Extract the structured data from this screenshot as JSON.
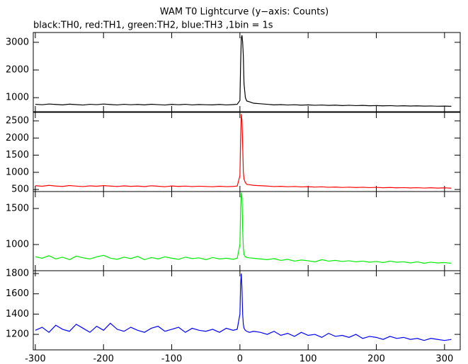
{
  "chart_data": [
    {
      "type": "line",
      "title": "WAM T0 Lightcurve (y−axis: Counts)",
      "subtitle": "black:TH0, red:TH1, green:TH2, blue:TH3 ,1bin = 1s",
      "xlim": [
        -303,
        323
      ],
      "ylim": [
        494,
        3354
      ],
      "yticks": [
        1000,
        2000,
        3000
      ],
      "x": [
        -300,
        -290,
        -280,
        -270,
        -260,
        -250,
        -240,
        -230,
        -220,
        -210,
        -200,
        -190,
        -180,
        -170,
        -160,
        -150,
        -140,
        -130,
        -120,
        -110,
        -100,
        -90,
        -80,
        -70,
        -60,
        -50,
        -40,
        -30,
        -20,
        -10,
        -4,
        0,
        1,
        2,
        3,
        4,
        5,
        6,
        8,
        10,
        14,
        20,
        30,
        40,
        50,
        60,
        70,
        80,
        90,
        100,
        110,
        120,
        130,
        140,
        150,
        160,
        170,
        180,
        190,
        200,
        210,
        220,
        230,
        240,
        250,
        260,
        270,
        280,
        290,
        300,
        310
      ],
      "series": [
        {
          "color": "#000000",
          "values": [
            760,
            745,
            770,
            755,
            740,
            765,
            750,
            735,
            760,
            748,
            770,
            752,
            738,
            760,
            745,
            755,
            740,
            762,
            748,
            735,
            758,
            744,
            760,
            738,
            752,
            745,
            740,
            755,
            738,
            750,
            760,
            900,
            2200,
            3150,
            3250,
            3000,
            2500,
            1500,
            1000,
            880,
            850,
            800,
            780,
            760,
            740,
            750,
            735,
            745,
            730,
            740,
            725,
            735,
            720,
            730,
            715,
            725,
            712,
            720,
            708,
            715,
            705,
            712,
            700,
            708,
            698,
            705,
            695,
            700,
            690,
            695,
            688
          ]
        }
      ]
    },
    {
      "type": "line",
      "xlim": [
        -303,
        323
      ],
      "ylim": [
        440,
        2747
      ],
      "yticks": [
        500,
        1000,
        1500,
        2000,
        2500
      ],
      "x": [
        -300,
        -290,
        -280,
        -270,
        -260,
        -250,
        -240,
        -230,
        -220,
        -210,
        -200,
        -190,
        -180,
        -170,
        -160,
        -150,
        -140,
        -130,
        -120,
        -110,
        -100,
        -90,
        -80,
        -70,
        -60,
        -50,
        -40,
        -30,
        -20,
        -10,
        -4,
        0,
        1,
        2,
        3,
        4,
        5,
        6,
        8,
        10,
        14,
        20,
        30,
        40,
        50,
        60,
        70,
        80,
        90,
        100,
        110,
        120,
        130,
        140,
        150,
        160,
        170,
        180,
        190,
        200,
        210,
        220,
        230,
        240,
        250,
        260,
        270,
        280,
        290,
        300,
        310
      ],
      "series": [
        {
          "color": "#ff0000",
          "values": [
            610,
            595,
            620,
            600,
            590,
            615,
            598,
            585,
            605,
            595,
            612,
            600,
            588,
            605,
            592,
            600,
            585,
            608,
            595,
            580,
            602,
            590,
            598,
            585,
            596,
            588,
            580,
            595,
            583,
            590,
            600,
            900,
            2000,
            2700,
            2500,
            1800,
            1000,
            800,
            700,
            650,
            640,
            620,
            610,
            600,
            585,
            592,
            580,
            588,
            575,
            582,
            570,
            578,
            565,
            572,
            560,
            568,
            558,
            565,
            555,
            562,
            550,
            558,
            548,
            555,
            545,
            552,
            542,
            550,
            540,
            548,
            538
          ]
        }
      ]
    },
    {
      "type": "line",
      "xlim": [
        -303,
        323
      ],
      "ylim": [
        637,
        1735
      ],
      "yticks": [
        1000,
        1500
      ],
      "x": [
        -300,
        -290,
        -280,
        -270,
        -260,
        -250,
        -240,
        -230,
        -220,
        -210,
        -200,
        -190,
        -180,
        -170,
        -160,
        -150,
        -140,
        -130,
        -120,
        -110,
        -100,
        -90,
        -80,
        -70,
        -60,
        -50,
        -40,
        -30,
        -20,
        -10,
        -4,
        0,
        1,
        2,
        3,
        4,
        5,
        6,
        8,
        10,
        14,
        20,
        30,
        40,
        50,
        60,
        70,
        80,
        90,
        100,
        110,
        120,
        130,
        140,
        150,
        160,
        170,
        180,
        190,
        200,
        210,
        220,
        230,
        240,
        250,
        260,
        270,
        280,
        290,
        300,
        310
      ],
      "series": [
        {
          "color": "#00ee00",
          "values": [
            830,
            810,
            845,
            800,
            825,
            790,
            840,
            815,
            800,
            830,
            850,
            810,
            795,
            825,
            805,
            835,
            790,
            820,
            800,
            830,
            810,
            795,
            825,
            805,
            815,
            790,
            820,
            800,
            810,
            795,
            810,
            1000,
            1500,
            1720,
            1650,
            1200,
            950,
            860,
            830,
            820,
            815,
            810,
            800,
            790,
            805,
            780,
            795,
            770,
            785,
            775,
            760,
            790,
            770,
            780,
            765,
            775,
            760,
            770,
            755,
            765,
            750,
            770,
            755,
            760,
            745,
            760,
            740,
            755,
            745,
            750,
            740
          ]
        }
      ]
    },
    {
      "type": "line",
      "xlim": [
        -303,
        323
      ],
      "ylim": [
        1047,
        1828
      ],
      "yticks": [
        1200,
        1400,
        1600,
        1800
      ],
      "xticks": [
        -300,
        -200,
        -100,
        0,
        100,
        200,
        300
      ],
      "x": [
        -300,
        -290,
        -280,
        -270,
        -260,
        -250,
        -240,
        -230,
        -220,
        -210,
        -200,
        -190,
        -180,
        -170,
        -160,
        -150,
        -140,
        -130,
        -120,
        -110,
        -100,
        -90,
        -80,
        -70,
        -60,
        -50,
        -40,
        -30,
        -20,
        -10,
        -4,
        0,
        1,
        2,
        3,
        4,
        5,
        6,
        8,
        10,
        14,
        20,
        30,
        40,
        50,
        60,
        70,
        80,
        90,
        100,
        110,
        120,
        130,
        140,
        150,
        160,
        170,
        180,
        190,
        200,
        210,
        220,
        230,
        240,
        250,
        260,
        270,
        280,
        290,
        300,
        310
      ],
      "series": [
        {
          "color": "#0000ff",
          "values": [
            1240,
            1270,
            1220,
            1290,
            1250,
            1230,
            1300,
            1260,
            1220,
            1280,
            1240,
            1310,
            1250,
            1230,
            1270,
            1240,
            1220,
            1260,
            1280,
            1230,
            1250,
            1270,
            1220,
            1260,
            1240,
            1230,
            1250,
            1220,
            1260,
            1240,
            1250,
            1400,
            1700,
            1800,
            1650,
            1400,
            1300,
            1260,
            1240,
            1230,
            1220,
            1230,
            1220,
            1200,
            1230,
            1190,
            1210,
            1180,
            1220,
            1190,
            1200,
            1170,
            1210,
            1180,
            1190,
            1170,
            1200,
            1160,
            1180,
            1170,
            1150,
            1180,
            1160,
            1170,
            1150,
            1160,
            1140,
            1160,
            1150,
            1140,
            1150
          ]
        }
      ]
    }
  ]
}
